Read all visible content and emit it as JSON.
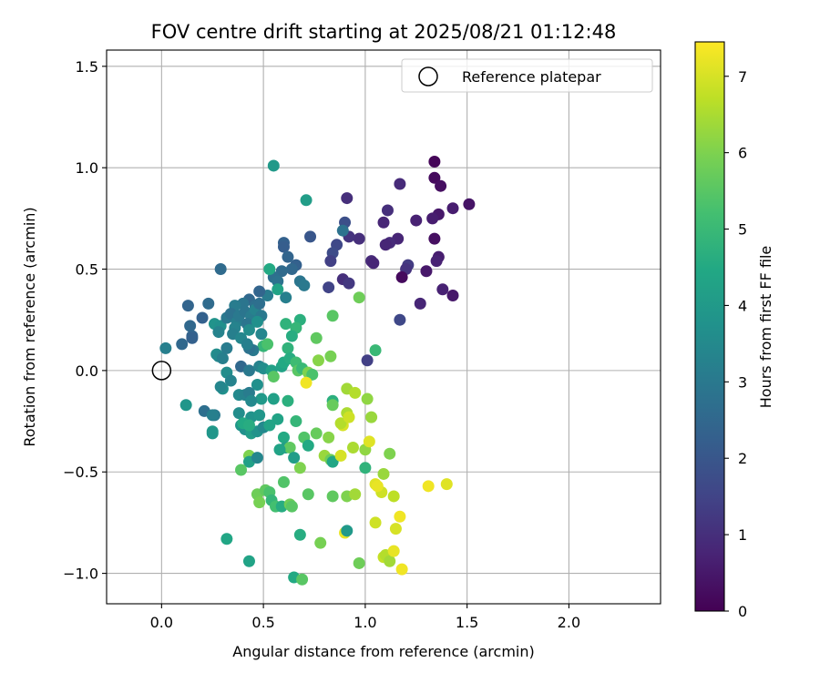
{
  "chart_data": {
    "type": "scatter",
    "title": "FOV centre drift starting at 2025/08/21 01:12:48",
    "xlabel": "Angular distance from reference (arcmin)",
    "ylabel": "Rotation from reference (arcmin)",
    "xlim": [
      -0.27,
      2.45
    ],
    "ylim": [
      -1.15,
      1.58
    ],
    "xticks": [
      0.0,
      0.5,
      1.0,
      1.5,
      2.0
    ],
    "xtick_labels": [
      "0.0",
      "0.5",
      "1.0",
      "1.5",
      "2.0"
    ],
    "yticks": [
      -1.0,
      -0.5,
      0.0,
      0.5,
      1.0,
      1.5
    ],
    "ytick_labels": [
      "−1.0",
      "−0.5",
      "0.0",
      "0.5",
      "1.0",
      "1.5"
    ],
    "grid": true,
    "legend": {
      "placement": "top-right",
      "entries": [
        "Reference platepar"
      ]
    },
    "reference_point": {
      "x": 0.0,
      "y": 0.0,
      "label": "Reference platepar"
    },
    "colorbar": {
      "label": "Hours from first FF file",
      "colormap": "viridis",
      "range": [
        0,
        7.45
      ],
      "ticks": [
        0,
        1,
        2,
        3,
        4,
        5,
        6,
        7
      ],
      "tick_labels": [
        "0",
        "1",
        "2",
        "3",
        "4",
        "5",
        "6",
        "7"
      ]
    },
    "points": [
      {
        "x": 1.34,
        "y": 1.03,
        "c": 0.1
      },
      {
        "x": 1.34,
        "y": 0.95,
        "c": 0.2
      },
      {
        "x": 1.51,
        "y": 0.82,
        "c": 0.4
      },
      {
        "x": 1.43,
        "y": 0.8,
        "c": 0.6
      },
      {
        "x": 1.37,
        "y": 0.91,
        "c": 0.3
      },
      {
        "x": 1.36,
        "y": 0.77,
        "c": 0.5
      },
      {
        "x": 1.33,
        "y": 0.75,
        "c": 0.6
      },
      {
        "x": 1.17,
        "y": 0.92,
        "c": 0.9
      },
      {
        "x": 1.11,
        "y": 0.79,
        "c": 1.0
      },
      {
        "x": 1.09,
        "y": 0.73,
        "c": 0.8
      },
      {
        "x": 1.25,
        "y": 0.74,
        "c": 0.7
      },
      {
        "x": 1.34,
        "y": 0.65,
        "c": 0.3
      },
      {
        "x": 1.16,
        "y": 0.65,
        "c": 0.8
      },
      {
        "x": 1.12,
        "y": 0.63,
        "c": 0.9
      },
      {
        "x": 1.1,
        "y": 0.62,
        "c": 0.8
      },
      {
        "x": 1.36,
        "y": 0.56,
        "c": 0.6
      },
      {
        "x": 1.35,
        "y": 0.54,
        "c": 0.7
      },
      {
        "x": 1.3,
        "y": 0.49,
        "c": 0.5
      },
      {
        "x": 1.21,
        "y": 0.52,
        "c": 1.3
      },
      {
        "x": 1.2,
        "y": 0.5,
        "c": 1.1
      },
      {
        "x": 1.18,
        "y": 0.46,
        "c": 0.2
      },
      {
        "x": 1.38,
        "y": 0.4,
        "c": 0.7
      },
      {
        "x": 1.43,
        "y": 0.37,
        "c": 0.5
      },
      {
        "x": 1.27,
        "y": 0.33,
        "c": 0.8
      },
      {
        "x": 1.17,
        "y": 0.25,
        "c": 1.6
      },
      {
        "x": 1.03,
        "y": 0.54,
        "c": 0.9
      },
      {
        "x": 1.04,
        "y": 0.53,
        "c": 0.8
      },
      {
        "x": 0.97,
        "y": 0.65,
        "c": 1.0
      },
      {
        "x": 0.92,
        "y": 0.66,
        "c": 1.1
      },
      {
        "x": 0.9,
        "y": 0.73,
        "c": 1.8
      },
      {
        "x": 0.91,
        "y": 0.85,
        "c": 1.0
      },
      {
        "x": 0.89,
        "y": 0.69,
        "c": 2.8
      },
      {
        "x": 0.86,
        "y": 0.62,
        "c": 1.6
      },
      {
        "x": 0.84,
        "y": 0.58,
        "c": 1.7
      },
      {
        "x": 0.83,
        "y": 0.54,
        "c": 1.4
      },
      {
        "x": 0.89,
        "y": 0.45,
        "c": 1.0
      },
      {
        "x": 0.92,
        "y": 0.43,
        "c": 1.2
      },
      {
        "x": 0.82,
        "y": 0.41,
        "c": 1.5
      },
      {
        "x": 0.73,
        "y": 0.66,
        "c": 2.0
      },
      {
        "x": 0.6,
        "y": 0.63,
        "c": 2.3
      },
      {
        "x": 0.6,
        "y": 0.61,
        "c": 2.2
      },
      {
        "x": 0.62,
        "y": 0.56,
        "c": 2.4
      },
      {
        "x": 0.66,
        "y": 0.52,
        "c": 2.3
      },
      {
        "x": 0.64,
        "y": 0.5,
        "c": 2.5
      },
      {
        "x": 0.59,
        "y": 0.49,
        "c": 2.6
      },
      {
        "x": 0.55,
        "y": 0.46,
        "c": 2.7
      },
      {
        "x": 0.57,
        "y": 0.44,
        "c": 2.8
      },
      {
        "x": 0.68,
        "y": 0.44,
        "c": 2.9
      },
      {
        "x": 0.7,
        "y": 0.42,
        "c": 3.0
      },
      {
        "x": 0.52,
        "y": 0.37,
        "c": 3.1
      },
      {
        "x": 0.61,
        "y": 0.36,
        "c": 3.2
      },
      {
        "x": 0.48,
        "y": 0.39,
        "c": 2.4
      },
      {
        "x": 0.43,
        "y": 0.35,
        "c": 2.5
      },
      {
        "x": 0.46,
        "y": 0.32,
        "c": 2.7
      },
      {
        "x": 0.4,
        "y": 0.33,
        "c": 2.9
      },
      {
        "x": 0.36,
        "y": 0.32,
        "c": 3.1
      },
      {
        "x": 0.29,
        "y": 0.5,
        "c": 2.6
      },
      {
        "x": 0.55,
        "y": 1.01,
        "c": 4.0
      },
      {
        "x": 0.71,
        "y": 0.84,
        "c": 4.1
      },
      {
        "x": 0.53,
        "y": 0.5,
        "c": 4.5
      },
      {
        "x": 0.57,
        "y": 0.4,
        "c": 4.3
      },
      {
        "x": 0.97,
        "y": 0.36,
        "c": 5.8
      },
      {
        "x": 1.05,
        "y": 0.1,
        "c": 5.0
      },
      {
        "x": 1.01,
        "y": 0.05,
        "c": 1.4
      },
      {
        "x": 0.84,
        "y": 0.27,
        "c": 5.5
      },
      {
        "x": 0.76,
        "y": 0.16,
        "c": 5.6
      },
      {
        "x": 0.68,
        "y": 0.25,
        "c": 4.7
      },
      {
        "x": 0.66,
        "y": 0.21,
        "c": 4.9
      },
      {
        "x": 0.61,
        "y": 0.23,
        "c": 4.8
      },
      {
        "x": 0.64,
        "y": 0.17,
        "c": 4.6
      },
      {
        "x": 0.62,
        "y": 0.11,
        "c": 4.8
      },
      {
        "x": 0.5,
        "y": 0.12,
        "c": 4.9
      },
      {
        "x": 0.52,
        "y": 0.13,
        "c": 5.3
      },
      {
        "x": 0.13,
        "y": 0.32,
        "c": 2.4
      },
      {
        "x": 0.23,
        "y": 0.33,
        "c": 2.6
      },
      {
        "x": 0.2,
        "y": 0.26,
        "c": 2.3
      },
      {
        "x": 0.14,
        "y": 0.22,
        "c": 2.5
      },
      {
        "x": 0.15,
        "y": 0.17,
        "c": 2.4
      },
      {
        "x": 0.15,
        "y": 0.16,
        "c": 2.3
      },
      {
        "x": 0.1,
        "y": 0.13,
        "c": 2.5
      },
      {
        "x": 0.02,
        "y": 0.11,
        "c": 3.2
      },
      {
        "x": 0.26,
        "y": 0.23,
        "c": 3.8
      },
      {
        "x": 0.29,
        "y": 0.22,
        "c": 3.7
      },
      {
        "x": 0.28,
        "y": 0.19,
        "c": 3.3
      },
      {
        "x": 0.32,
        "y": 0.26,
        "c": 3.0
      },
      {
        "x": 0.34,
        "y": 0.28,
        "c": 2.8
      },
      {
        "x": 0.37,
        "y": 0.24,
        "c": 3.2
      },
      {
        "x": 0.38,
        "y": 0.27,
        "c": 3.0
      },
      {
        "x": 0.41,
        "y": 0.29,
        "c": 2.9
      },
      {
        "x": 0.44,
        "y": 0.27,
        "c": 3.1
      },
      {
        "x": 0.46,
        "y": 0.3,
        "c": 3.3
      },
      {
        "x": 0.48,
        "y": 0.33,
        "c": 2.7
      },
      {
        "x": 0.49,
        "y": 0.27,
        "c": 3.0
      },
      {
        "x": 0.45,
        "y": 0.24,
        "c": 3.1
      },
      {
        "x": 0.42,
        "y": 0.23,
        "c": 2.9
      },
      {
        "x": 0.36,
        "y": 0.21,
        "c": 3.3
      },
      {
        "x": 0.35,
        "y": 0.18,
        "c": 3.2
      },
      {
        "x": 0.39,
        "y": 0.16,
        "c": 3.4
      },
      {
        "x": 0.43,
        "y": 0.2,
        "c": 3.6
      },
      {
        "x": 0.47,
        "y": 0.24,
        "c": 3.7
      },
      {
        "x": 0.49,
        "y": 0.18,
        "c": 3.4
      },
      {
        "x": 0.45,
        "y": 0.1,
        "c": 3.0
      },
      {
        "x": 0.43,
        "y": 0.11,
        "c": 2.8
      },
      {
        "x": 0.42,
        "y": 0.13,
        "c": 3.2
      },
      {
        "x": 0.27,
        "y": 0.08,
        "c": 3.6
      },
      {
        "x": 0.28,
        "y": 0.07,
        "c": 3.5
      },
      {
        "x": 0.3,
        "y": 0.06,
        "c": 3.2
      },
      {
        "x": 0.32,
        "y": 0.11,
        "c": 3.1
      },
      {
        "x": 0.39,
        "y": 0.02,
        "c": 2.5
      },
      {
        "x": 0.43,
        "y": 0.0,
        "c": 3.0
      },
      {
        "x": 0.48,
        "y": 0.02,
        "c": 3.3
      },
      {
        "x": 0.5,
        "y": 0.01,
        "c": 3.6
      },
      {
        "x": 0.54,
        "y": 0.0,
        "c": 4.2
      },
      {
        "x": 0.55,
        "y": -0.03,
        "c": 5.5
      },
      {
        "x": 0.59,
        "y": 0.02,
        "c": 4.3
      },
      {
        "x": 0.6,
        "y": 0.04,
        "c": 4.5
      },
      {
        "x": 0.63,
        "y": 0.06,
        "c": 4.6
      },
      {
        "x": 0.66,
        "y": 0.04,
        "c": 5.1
      },
      {
        "x": 0.67,
        "y": 0.0,
        "c": 5.5
      },
      {
        "x": 0.69,
        "y": 0.01,
        "c": 5.0
      },
      {
        "x": 0.72,
        "y": -0.01,
        "c": 6.0
      },
      {
        "x": 0.74,
        "y": -0.02,
        "c": 5.3
      },
      {
        "x": 0.71,
        "y": -0.06,
        "c": 7.3
      },
      {
        "x": 0.77,
        "y": 0.05,
        "c": 6.1
      },
      {
        "x": 0.83,
        "y": 0.07,
        "c": 5.9
      },
      {
        "x": 0.32,
        "y": -0.01,
        "c": 3.6
      },
      {
        "x": 0.34,
        "y": -0.05,
        "c": 3.3
      },
      {
        "x": 0.3,
        "y": -0.09,
        "c": 3.7
      },
      {
        "x": 0.29,
        "y": -0.08,
        "c": 3.4
      },
      {
        "x": 0.38,
        "y": -0.12,
        "c": 3.5
      },
      {
        "x": 0.41,
        "y": -0.12,
        "c": 3.3
      },
      {
        "x": 0.43,
        "y": -0.11,
        "c": 3.1
      },
      {
        "x": 0.47,
        "y": -0.07,
        "c": 3.7
      },
      {
        "x": 0.49,
        "y": -0.14,
        "c": 4.0
      },
      {
        "x": 0.44,
        "y": -0.15,
        "c": 3.5
      },
      {
        "x": 0.55,
        "y": -0.14,
        "c": 4.2
      },
      {
        "x": 0.62,
        "y": -0.15,
        "c": 4.7
      },
      {
        "x": 0.12,
        "y": -0.17,
        "c": 3.9
      },
      {
        "x": 0.21,
        "y": -0.2,
        "c": 2.7
      },
      {
        "x": 0.26,
        "y": -0.22,
        "c": 3.0
      },
      {
        "x": 0.25,
        "y": -0.22,
        "c": 3.2
      },
      {
        "x": 0.38,
        "y": -0.21,
        "c": 3.6
      },
      {
        "x": 0.44,
        "y": -0.23,
        "c": 3.8
      },
      {
        "x": 0.48,
        "y": -0.22,
        "c": 3.9
      },
      {
        "x": 0.57,
        "y": -0.24,
        "c": 4.3
      },
      {
        "x": 0.66,
        "y": -0.25,
        "c": 4.9
      },
      {
        "x": 0.39,
        "y": -0.27,
        "c": 3.9
      },
      {
        "x": 0.41,
        "y": -0.29,
        "c": 3.7
      },
      {
        "x": 0.44,
        "y": -0.31,
        "c": 4.1
      },
      {
        "x": 0.47,
        "y": -0.3,
        "c": 3.8
      },
      {
        "x": 0.5,
        "y": -0.28,
        "c": 3.5
      },
      {
        "x": 0.4,
        "y": -0.26,
        "c": 4.5
      },
      {
        "x": 0.43,
        "y": -0.27,
        "c": 4.6
      },
      {
        "x": 0.25,
        "y": -0.3,
        "c": 4.0
      },
      {
        "x": 0.25,
        "y": -0.31,
        "c": 3.9
      },
      {
        "x": 0.53,
        "y": -0.27,
        "c": 4.3
      },
      {
        "x": 0.6,
        "y": -0.33,
        "c": 4.5
      },
      {
        "x": 0.61,
        "y": -0.38,
        "c": 4.2
      },
      {
        "x": 0.63,
        "y": -0.38,
        "c": 5.6
      },
      {
        "x": 0.65,
        "y": -0.43,
        "c": 4.1
      },
      {
        "x": 0.7,
        "y": -0.33,
        "c": 5.4
      },
      {
        "x": 0.72,
        "y": -0.37,
        "c": 4.5
      },
      {
        "x": 0.76,
        "y": -0.31,
        "c": 5.7
      },
      {
        "x": 0.82,
        "y": -0.33,
        "c": 6.1
      },
      {
        "x": 0.58,
        "y": -0.39,
        "c": 4.3
      },
      {
        "x": 0.43,
        "y": -0.42,
        "c": 6.0
      },
      {
        "x": 0.43,
        "y": -0.45,
        "c": 4.2
      },
      {
        "x": 0.47,
        "y": -0.43,
        "c": 3.4
      },
      {
        "x": 0.39,
        "y": -0.49,
        "c": 5.5
      },
      {
        "x": 0.68,
        "y": -0.48,
        "c": 6.0
      },
      {
        "x": 0.8,
        "y": -0.42,
        "c": 6.3
      },
      {
        "x": 0.83,
        "y": -0.44,
        "c": 5.8
      },
      {
        "x": 0.84,
        "y": -0.45,
        "c": 4.4
      },
      {
        "x": 0.88,
        "y": -0.42,
        "c": 7.0
      },
      {
        "x": 0.89,
        "y": -0.27,
        "c": 7.0
      },
      {
        "x": 0.88,
        "y": -0.26,
        "c": 6.6
      },
      {
        "x": 0.91,
        "y": -0.21,
        "c": 6.5
      },
      {
        "x": 0.92,
        "y": -0.23,
        "c": 6.9
      },
      {
        "x": 0.94,
        "y": -0.38,
        "c": 6.5
      },
      {
        "x": 1.0,
        "y": -0.39,
        "c": 6.2
      },
      {
        "x": 1.02,
        "y": -0.35,
        "c": 7.1
      },
      {
        "x": 1.01,
        "y": -0.14,
        "c": 6.2
      },
      {
        "x": 1.03,
        "y": -0.23,
        "c": 6.3
      },
      {
        "x": 1.0,
        "y": -0.48,
        "c": 4.8
      },
      {
        "x": 1.05,
        "y": -0.56,
        "c": 7.1
      },
      {
        "x": 1.09,
        "y": -0.51,
        "c": 6.3
      },
      {
        "x": 1.12,
        "y": -0.41,
        "c": 6.0
      },
      {
        "x": 0.84,
        "y": -0.15,
        "c": 4.7
      },
      {
        "x": 0.84,
        "y": -0.17,
        "c": 5.7
      },
      {
        "x": 0.91,
        "y": -0.09,
        "c": 6.4
      },
      {
        "x": 0.95,
        "y": -0.11,
        "c": 6.6
      },
      {
        "x": 0.47,
        "y": -0.61,
        "c": 5.8
      },
      {
        "x": 0.48,
        "y": -0.65,
        "c": 5.9
      },
      {
        "x": 0.51,
        "y": -0.59,
        "c": 5.6
      },
      {
        "x": 0.53,
        "y": -0.6,
        "c": 5.3
      },
      {
        "x": 0.54,
        "y": -0.64,
        "c": 4.9
      },
      {
        "x": 0.56,
        "y": -0.67,
        "c": 5.2
      },
      {
        "x": 0.59,
        "y": -0.67,
        "c": 4.6
      },
      {
        "x": 0.63,
        "y": -0.66,
        "c": 5.8
      },
      {
        "x": 0.64,
        "y": -0.67,
        "c": 5.5
      },
      {
        "x": 0.6,
        "y": -0.55,
        "c": 5.4
      },
      {
        "x": 0.72,
        "y": -0.61,
        "c": 5.5
      },
      {
        "x": 0.84,
        "y": -0.62,
        "c": 5.6
      },
      {
        "x": 0.91,
        "y": -0.62,
        "c": 6.0
      },
      {
        "x": 0.95,
        "y": -0.61,
        "c": 6.4
      },
      {
        "x": 1.08,
        "y": -0.6,
        "c": 6.9
      },
      {
        "x": 1.06,
        "y": -0.57,
        "c": 7.2
      },
      {
        "x": 1.14,
        "y": -0.62,
        "c": 6.7
      },
      {
        "x": 1.31,
        "y": -0.57,
        "c": 7.3
      },
      {
        "x": 1.4,
        "y": -0.56,
        "c": 7.1
      },
      {
        "x": 1.17,
        "y": -0.72,
        "c": 7.3
      },
      {
        "x": 1.15,
        "y": -0.78,
        "c": 7.0
      },
      {
        "x": 1.05,
        "y": -0.75,
        "c": 6.9
      },
      {
        "x": 0.9,
        "y": -0.8,
        "c": 7.2
      },
      {
        "x": 0.91,
        "y": -0.79,
        "c": 4.0
      },
      {
        "x": 0.78,
        "y": -0.85,
        "c": 5.9
      },
      {
        "x": 0.68,
        "y": -0.81,
        "c": 4.6
      },
      {
        "x": 0.32,
        "y": -0.83,
        "c": 4.4
      },
      {
        "x": 0.43,
        "y": -0.94,
        "c": 4.3
      },
      {
        "x": 0.65,
        "y": -1.02,
        "c": 4.5
      },
      {
        "x": 0.69,
        "y": -1.03,
        "c": 5.5
      },
      {
        "x": 0.97,
        "y": -0.95,
        "c": 5.8
      },
      {
        "x": 1.09,
        "y": -0.92,
        "c": 6.8
      },
      {
        "x": 1.1,
        "y": -0.91,
        "c": 6.6
      },
      {
        "x": 1.12,
        "y": -0.94,
        "c": 6.4
      },
      {
        "x": 1.14,
        "y": -0.89,
        "c": 7.2
      },
      {
        "x": 1.18,
        "y": -0.98,
        "c": 7.3
      }
    ]
  }
}
